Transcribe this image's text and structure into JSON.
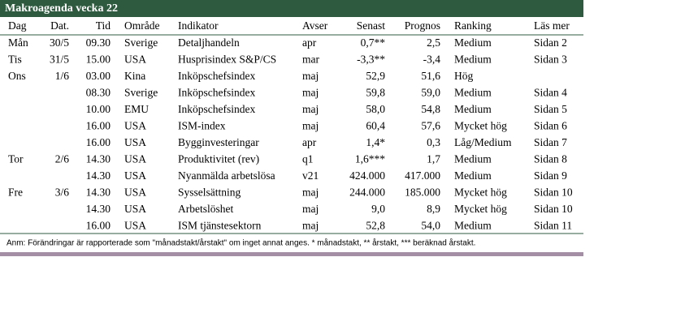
{
  "title": "Makroagenda vecka 22",
  "table": {
    "columns": [
      "Dag",
      "Dat.",
      "Tid",
      "Område",
      "Indikator",
      "Avser",
      "Senast",
      "Prognos",
      "Ranking",
      "Läs mer"
    ],
    "rows": [
      [
        "Mån",
        "30/5",
        "09.30",
        "Sverige",
        "Detaljhandeln",
        "apr",
        "0,7**",
        "2,5",
        "Medium",
        "Sidan 2"
      ],
      [
        "Tis",
        "31/5",
        "15.00",
        "USA",
        "Husprisindex S&P/CS",
        "mar",
        "-3,3**",
        "-3,4",
        "Medium",
        "Sidan 3"
      ],
      [
        "Ons",
        "1/6",
        "03.00",
        "Kina",
        "Inköpschefsindex",
        "maj",
        "52,9",
        "51,6",
        "Hög",
        null
      ],
      [
        null,
        null,
        "08.30",
        "Sverige",
        "Inköpschefsindex",
        "maj",
        "59,8",
        "59,0",
        "Medium",
        "Sidan 4"
      ],
      [
        null,
        null,
        "10.00",
        "EMU",
        "Inköpschefsindex",
        "maj",
        "58,0",
        "54,8",
        "Medium",
        "Sidan 5"
      ],
      [
        null,
        null,
        "16.00",
        "USA",
        "ISM-index",
        "maj",
        "60,4",
        "57,6",
        "Mycket hög",
        "Sidan 6"
      ],
      [
        null,
        null,
        "16.00",
        "USA",
        "Bygginvesteringar",
        "apr",
        "1,4*",
        "0,3",
        "Låg/Medium",
        "Sidan 7"
      ],
      [
        "Tor",
        "2/6",
        "14.30",
        "USA",
        "Produktivitet (rev)",
        "q1",
        "1,6***",
        "1,7",
        "Medium",
        "Sidan 8"
      ],
      [
        null,
        null,
        "14.30",
        "USA",
        "Nyanmälda arbetslösa",
        "v21",
        "424.000",
        "417.000",
        "Medium",
        "Sidan 9"
      ],
      [
        "Fre",
        "3/6",
        "14.30",
        "USA",
        "Sysselsättning",
        "maj",
        "244.000",
        "185.000",
        "Mycket hög",
        "Sidan 10"
      ],
      [
        null,
        null,
        "14.30",
        "USA",
        "Arbetslöshet",
        "maj",
        "9,0",
        "8,9",
        "Mycket hög",
        "Sidan 10"
      ],
      [
        null,
        null,
        "16.00",
        "USA",
        "ISM tjänstesektorn",
        "maj",
        "52,8",
        "54,0",
        "Medium",
        "Sidan 11"
      ]
    ]
  },
  "note": "Anm: Förändringar är rapporterade som \"månadstakt/årstakt\" om inget annat anges. * månadstakt, ** årstakt, *** beräknad årstakt."
}
